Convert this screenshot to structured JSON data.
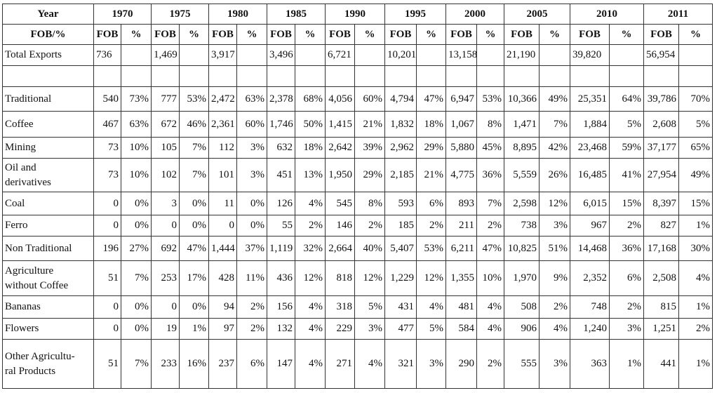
{
  "table": {
    "years": [
      "1970",
      "1975",
      "1980",
      "1985",
      "1990",
      "1995",
      "2000",
      "2005",
      "2010",
      "2011"
    ],
    "year_label": "Year",
    "subheader_label": "FOB/%",
    "fob_label": "FOB",
    "pct_label": "%",
    "rows": [
      {
        "label": "Total Exports",
        "cells": [
          "736",
          null,
          "1,469",
          null,
          "3,917",
          null,
          "3,496",
          null,
          "6,721",
          null,
          "10,201",
          null,
          "13,158",
          null,
          "21,190",
          null,
          "39,820",
          null,
          "56,954",
          null
        ]
      },
      {
        "label": null,
        "cells": [
          null,
          null,
          null,
          null,
          null,
          null,
          null,
          null,
          null,
          null,
          null,
          null,
          null,
          null,
          null,
          null,
          null,
          null,
          null,
          null
        ]
      },
      {
        "label": "Traditional",
        "cells": [
          "540",
          "73%",
          "777",
          "53%",
          "2,472",
          "63%",
          "2,378",
          "68%",
          "4,056",
          "60%",
          "4,794",
          "47%",
          "6,947",
          "53%",
          "10,366",
          "49%",
          "25,351",
          "64%",
          "39,786",
          "70%"
        ]
      },
      {
        "label": "Coffee",
        "cells": [
          "467",
          "63%",
          "672",
          "46%",
          "2,361",
          "60%",
          "1,746",
          "50%",
          "1,415",
          "21%",
          "1,832",
          "18%",
          "1,067",
          "8%",
          "1,471",
          "7%",
          "1,884",
          "5%",
          "2,608",
          "5%"
        ]
      },
      {
        "label": "Mining",
        "cells": [
          "73",
          "10%",
          "105",
          "7%",
          "112",
          "3%",
          "632",
          "18%",
          "2,642",
          "39%",
          "2,962",
          "29%",
          "5,880",
          "45%",
          "8,895",
          "42%",
          "23,468",
          "59%",
          "37,177",
          "65%"
        ]
      },
      {
        "label": "Oil and\nderivatives",
        "cells": [
          "73",
          "10%",
          "102",
          "7%",
          "101",
          "3%",
          "451",
          "13%",
          "1,950",
          "29%",
          "2,185",
          "21%",
          "4,775",
          "36%",
          "5,559",
          "26%",
          "16,485",
          "41%",
          "27,954",
          "49%"
        ]
      },
      {
        "label": "Coal",
        "cells": [
          "0",
          "0%",
          "3",
          "0%",
          "11",
          "0%",
          "126",
          "4%",
          "545",
          "8%",
          "593",
          "6%",
          "893",
          "7%",
          "2,598",
          "12%",
          "6,015",
          "15%",
          "8,397",
          "15%"
        ]
      },
      {
        "label": "Ferro",
        "cells": [
          "0",
          "0%",
          "0",
          "0%",
          "0",
          "0%",
          "55",
          "2%",
          "146",
          "2%",
          "185",
          "2%",
          "211",
          "2%",
          "738",
          "3%",
          "967",
          "2%",
          "827",
          "1%"
        ]
      },
      {
        "label": "Non Traditional",
        "cells": [
          "196",
          "27%",
          "692",
          "47%",
          "1,444",
          "37%",
          "1,119",
          "32%",
          "2,664",
          "40%",
          "5,407",
          "53%",
          "6,211",
          "47%",
          "10,825",
          "51%",
          "14,468",
          "36%",
          "17,168",
          "30%"
        ]
      },
      {
        "label": "Agriculture\nwithout Coffee",
        "cells": [
          "51",
          "7%",
          "253",
          "17%",
          "428",
          "11%",
          "436",
          "12%",
          "818",
          "12%",
          "1,229",
          "12%",
          "1,355",
          "10%",
          "1,970",
          "9%",
          "2,352",
          "6%",
          "2,508",
          "4%"
        ]
      },
      {
        "label": "Bananas",
        "cells": [
          "0",
          "0%",
          "0",
          "0%",
          "94",
          "2%",
          "156",
          "4%",
          "318",
          "5%",
          "431",
          "4%",
          "481",
          "4%",
          "508",
          "2%",
          "748",
          "2%",
          "815",
          "1%"
        ]
      },
      {
        "label": "Flowers",
        "cells": [
          "0",
          "0%",
          "19",
          "1%",
          "97",
          "2%",
          "132",
          "4%",
          "229",
          "3%",
          "477",
          "5%",
          "584",
          "4%",
          "906",
          "4%",
          "1,240",
          "3%",
          "1,251",
          "2%"
        ]
      },
      {
        "label": "Other Agricultu-\nral Products",
        "cells": [
          "51",
          "7%",
          "233",
          "16%",
          "237",
          "6%",
          "147",
          "4%",
          "271",
          "4%",
          "321",
          "3%",
          "290",
          "2%",
          "555",
          "3%",
          "363",
          "1%",
          "441",
          "1%"
        ]
      }
    ]
  }
}
